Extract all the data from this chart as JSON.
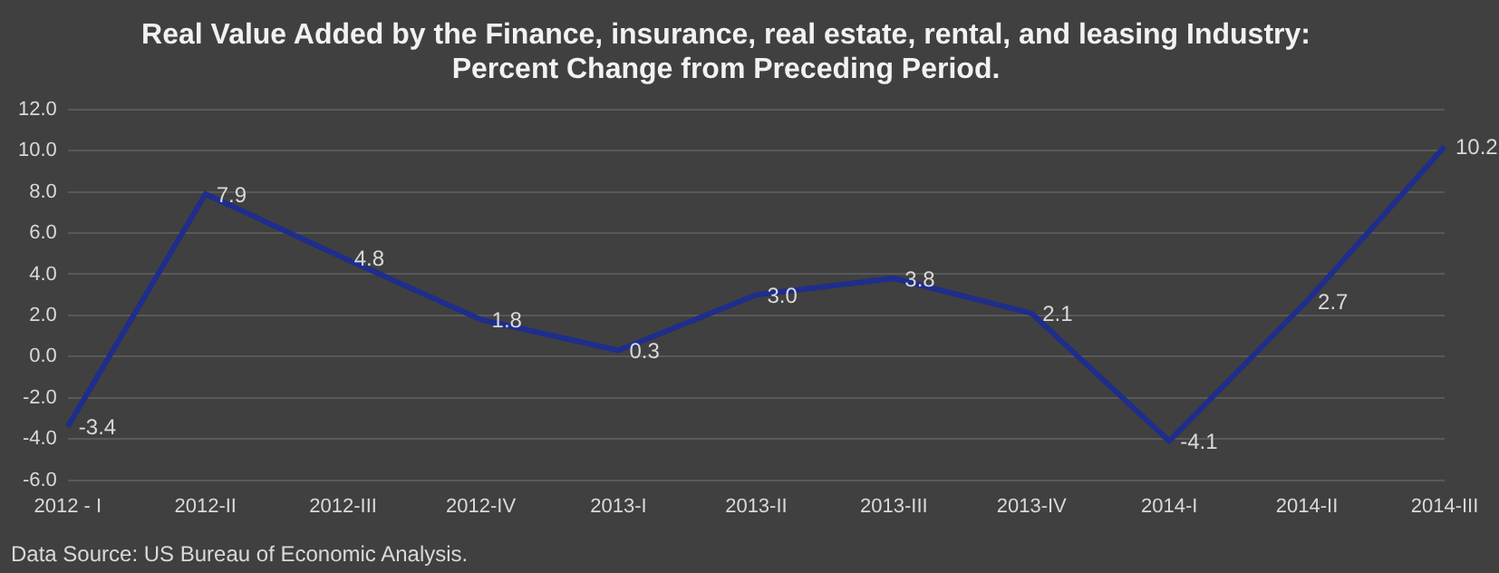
{
  "chart_data": {
    "type": "line",
    "title": "Real Value Added by the Finance, insurance, real estate, rental, and leasing Industry:\nPercent Change from Preceding Period.",
    "categories": [
      "2012 - I",
      "2012-II",
      "2012-III",
      "2012-IV",
      "2013-I",
      "2013-II",
      "2013-III",
      "2013-IV",
      "2014-I",
      "2014-II",
      "2014-III"
    ],
    "series": [
      {
        "color": "#1f2d8c",
        "values": [
          -3.4,
          7.9,
          4.8,
          1.8,
          0.3,
          3.0,
          3.8,
          2.1,
          -4.1,
          2.7,
          10.2
        ],
        "value_labels": [
          "-3.4",
          "7.9",
          "4.8",
          "1.8",
          "0.3",
          "3.0",
          "3.8",
          "2.1",
          "-4.1",
          "2.7",
          "10.2"
        ]
      }
    ],
    "ylim": [
      -6,
      12
    ],
    "yticks": [
      {
        "value": -6,
        "label": "-6.0"
      },
      {
        "value": -4,
        "label": "-4.0"
      },
      {
        "value": -2,
        "label": "-2.0"
      },
      {
        "value": 0,
        "label": "0.0"
      },
      {
        "value": 2,
        "label": "2.0"
      },
      {
        "value": 4,
        "label": "4.0"
      },
      {
        "value": 6,
        "label": "6.0"
      },
      {
        "value": 8,
        "label": "8.0"
      },
      {
        "value": 10,
        "label": "10.0"
      },
      {
        "value": 12,
        "label": "12.0"
      }
    ],
    "grid": "y",
    "legend": false,
    "marker": "none",
    "line_style": "solid",
    "annotations": [
      "Data Source: US Bureau of Economic Analysis."
    ]
  }
}
